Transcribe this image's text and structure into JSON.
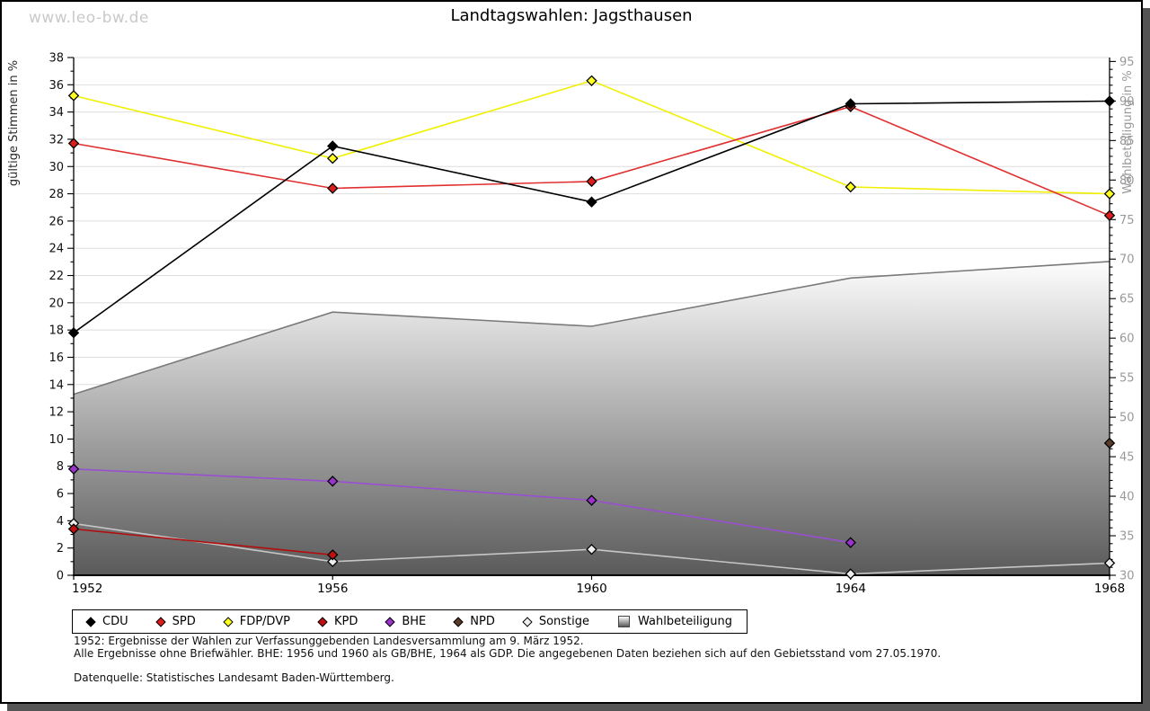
{
  "watermark": "www.leo-bw.de",
  "title": "Landtagswahlen: Jagsthausen",
  "footer": {
    "line1": "1952: Ergebnisse der Wahlen zur Verfassunggebenden Landesversammlung am 9. März 1952.",
    "line2": "Alle Ergebnisse ohne Briefwähler. BHE: 1956 und 1960 als GB/BHE, 1964 als GDP. Die angegebenen Daten beziehen sich auf den Gebietsstand vom 27.05.1970.",
    "source": "Datenquelle: Statistisches Landesamt Baden-Württemberg."
  },
  "chart_data": {
    "type": "line",
    "x": [
      "1952",
      "1956",
      "1960",
      "1964",
      "1968"
    ],
    "left_axis": {
      "label": "gültige Stimmen in %",
      "min": 0,
      "max": 38,
      "tick_step": 2,
      "minor_step": 1
    },
    "right_axis": {
      "label": "Wahlbeteiligung in %",
      "min": 30,
      "max": 95.5,
      "tick_step": 5,
      "minor_step": 1,
      "label_max": 95
    },
    "grid": "horizontal",
    "legend_position": "bottom",
    "series": [
      {
        "name": "CDU",
        "axis": "left",
        "color": "#000000",
        "marker_fill": "#000000",
        "values": [
          17.8,
          31.5,
          27.4,
          34.6,
          34.8
        ]
      },
      {
        "name": "SPD",
        "axis": "left",
        "color": "#e03030",
        "marker_fill": "#dd1c1c",
        "values": [
          31.7,
          28.4,
          28.9,
          34.4,
          26.4
        ]
      },
      {
        "name": "FDP/DVP",
        "axis": "left",
        "color": "#f0f000",
        "marker_fill": "#ffff20",
        "values": [
          35.2,
          30.6,
          36.3,
          28.5,
          28.0
        ]
      },
      {
        "name": "KPD",
        "axis": "left",
        "color": "#b40d0d",
        "marker_fill": "#c01010",
        "values": [
          3.4,
          1.5,
          null,
          null,
          null
        ]
      },
      {
        "name": "BHE",
        "axis": "left",
        "color": "#9a4fd2",
        "marker_fill": "#9933cc",
        "values": [
          7.8,
          6.9,
          5.5,
          2.4,
          null
        ]
      },
      {
        "name": "NPD",
        "axis": "left",
        "color": "#5c3c28",
        "marker_fill": "#5c3c28",
        "values": [
          null,
          null,
          null,
          null,
          9.7
        ]
      },
      {
        "name": "Sonstige",
        "axis": "left",
        "color": "#c6c6c6",
        "marker_fill": "#eeeeee",
        "values": [
          3.8,
          1.0,
          1.9,
          0.1,
          0.9
        ]
      }
    ],
    "area": {
      "name": "Wahlbeteiligung",
      "axis": "right",
      "values": [
        52.9,
        63.3,
        61.5,
        67.6,
        69.7
      ],
      "stroke": "#7a7a7a",
      "fill_top": "#fdfdfd",
      "fill_bottom": "#5a5a5a"
    },
    "colors": {
      "gridline": "#dedede",
      "axis": "#000000",
      "right_tick_label": "#999999",
      "left_tick_label": "#111111"
    }
  }
}
